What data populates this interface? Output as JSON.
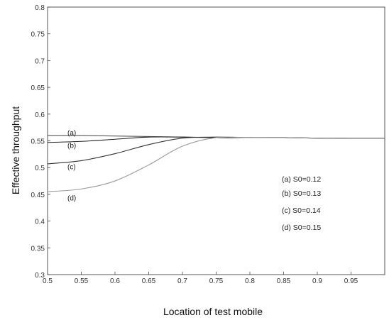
{
  "chart_data": {
    "type": "line",
    "title": "",
    "xlabel": "Location of test mobile",
    "ylabel": "Effective throughput",
    "xlim": [
      0.5,
      1.0
    ],
    "ylim": [
      0.3,
      0.8
    ],
    "xticks": [
      "0.5",
      "0.55",
      "0.6",
      "0.65",
      "0.7",
      "0.75",
      "0.8",
      "0.85",
      "0.9",
      "0.95"
    ],
    "xtick_values": [
      0.5,
      0.55,
      0.6,
      0.65,
      0.7,
      0.75,
      0.8,
      0.85,
      0.9,
      0.95
    ],
    "yticks": [
      "0.3",
      "0.35",
      "0.4",
      "0.45",
      "0.5",
      "0.55",
      "0.6",
      "0.65",
      "0.7",
      "0.75",
      "0.8"
    ],
    "ytick_values": [
      0.3,
      0.35,
      0.4,
      0.45,
      0.5,
      0.55,
      0.6,
      0.65,
      0.7,
      0.75,
      0.8
    ],
    "grid": false,
    "legend_position": "right-middle",
    "series": [
      {
        "name": "(a) S0=0.12",
        "tag": "(a)",
        "color": "#555555",
        "x": [
          0.5,
          0.55,
          0.6,
          0.65,
          0.7,
          0.75,
          0.8,
          0.85,
          0.9,
          0.95,
          1.0
        ],
        "y": [
          0.56,
          0.56,
          0.559,
          0.558,
          0.557,
          0.556,
          0.556,
          0.556,
          0.555,
          0.555,
          0.555
        ]
      },
      {
        "name": "(b) S0=0.13",
        "tag": "(b)",
        "color": "#222222",
        "x": [
          0.5,
          0.55,
          0.6,
          0.65,
          0.7,
          0.75,
          0.8,
          0.85,
          0.9,
          0.95,
          1.0
        ],
        "y": [
          0.547,
          0.549,
          0.553,
          0.557,
          0.557,
          0.556,
          0.556,
          0.556,
          0.555,
          0.555,
          0.555
        ]
      },
      {
        "name": "(c) S0=0.14",
        "tag": "(c)",
        "color": "#333333",
        "x": [
          0.5,
          0.55,
          0.6,
          0.65,
          0.7,
          0.75,
          0.8,
          0.85,
          0.9,
          0.95,
          1.0
        ],
        "y": [
          0.507,
          0.513,
          0.526,
          0.543,
          0.555,
          0.557,
          0.556,
          0.556,
          0.555,
          0.555,
          0.555
        ]
      },
      {
        "name": "(d) S0=0.15",
        "tag": "(d)",
        "color": "#9a9a9a",
        "x": [
          0.5,
          0.55,
          0.6,
          0.65,
          0.7,
          0.75,
          0.8,
          0.85,
          0.9,
          0.95,
          1.0
        ],
        "y": [
          0.455,
          0.46,
          0.475,
          0.505,
          0.54,
          0.556,
          0.556,
          0.556,
          0.555,
          0.555,
          0.555
        ]
      }
    ]
  }
}
